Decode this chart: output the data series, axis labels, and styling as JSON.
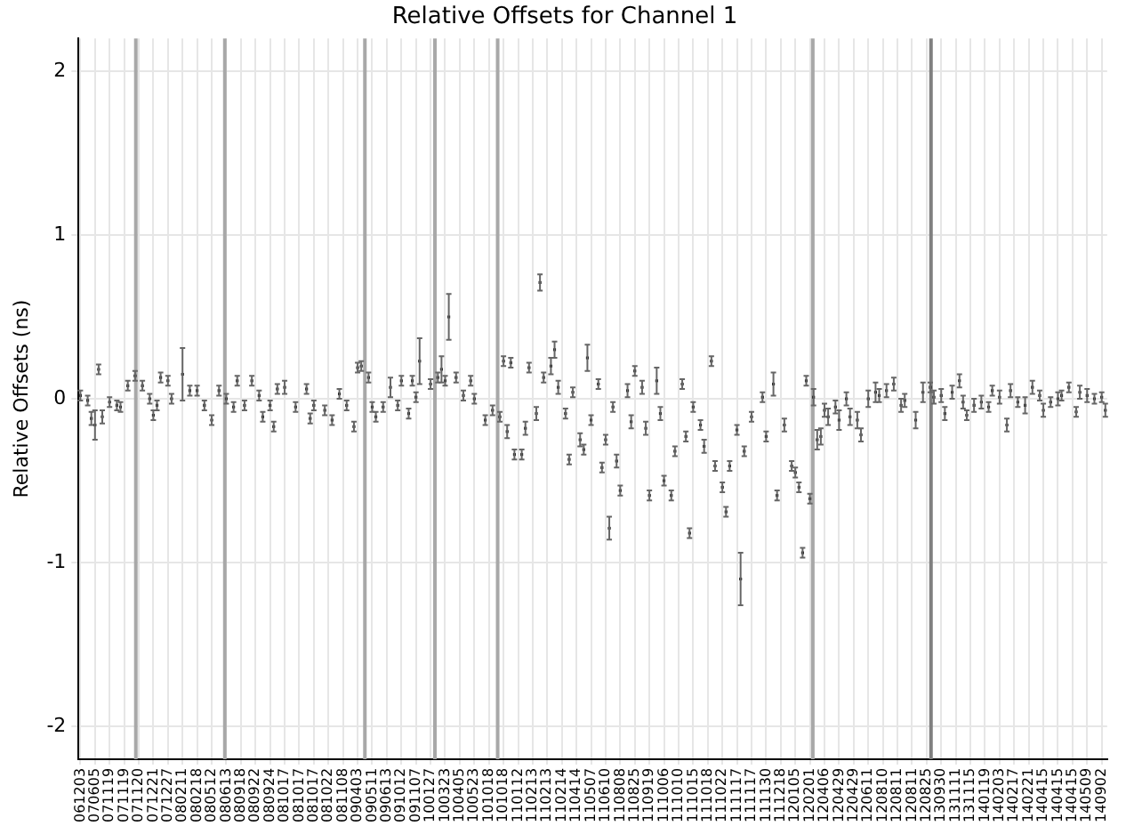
{
  "chart_data": {
    "type": "scatter",
    "title": "Relative Offsets for Channel 1",
    "ylabel": "Relative Offsets (ns)",
    "marker": "square",
    "grid": true,
    "legend": false,
    "color": "#000000",
    "ylim": [
      -2.2,
      2.2
    ],
    "yticks": [
      -2,
      -1,
      0,
      1,
      2
    ],
    "categories": [
      "061203",
      null,
      null,
      null,
      "070605",
      null,
      null,
      null,
      "071119",
      null,
      null,
      null,
      "071119",
      null,
      null,
      null,
      "071120",
      null,
      null,
      null,
      "071221",
      null,
      null,
      null,
      "071227",
      null,
      null,
      null,
      "080211",
      null,
      null,
      null,
      "080218",
      null,
      null,
      null,
      "080512",
      null,
      null,
      null,
      "080613",
      null,
      null,
      null,
      "080918",
      null,
      null,
      null,
      "080922",
      null,
      null,
      null,
      "080924",
      null,
      null,
      null,
      "081017",
      null,
      null,
      null,
      "081017",
      null,
      null,
      null,
      "081017",
      null,
      null,
      null,
      "081022",
      null,
      null,
      null,
      "081108",
      null,
      null,
      null,
      "090403",
      null,
      null,
      null,
      "090511",
      null,
      null,
      null,
      "090613",
      null,
      null,
      null,
      "091012",
      null,
      null,
      null,
      "091107",
      null,
      null,
      null,
      "100127",
      null,
      null,
      null,
      "100323",
      null,
      null,
      null,
      "100405",
      null,
      null,
      null,
      "100523",
      null,
      null,
      null,
      "101018",
      null,
      null,
      null,
      "101018",
      null,
      null,
      null,
      "110112",
      null,
      null,
      null,
      "110213",
      null,
      null,
      null,
      "110213",
      null,
      null,
      null,
      "110214",
      null,
      null,
      null,
      "110414",
      null,
      null,
      null,
      "110507",
      null,
      null,
      null,
      "110610",
      null,
      null,
      null,
      "110808",
      null,
      null,
      null,
      "110825",
      null,
      null,
      null,
      "110919",
      null,
      null,
      null,
      "111006",
      null,
      null,
      null,
      "111010",
      null,
      null,
      null,
      "111015",
      null,
      null,
      null,
      "111018",
      null,
      null,
      null,
      "111022",
      null,
      null,
      null,
      "111117",
      null,
      null,
      null,
      "111117",
      null,
      null,
      null,
      "111130",
      null,
      null,
      null,
      "111218",
      null,
      null,
      null,
      "120105",
      null,
      null,
      null,
      "120201",
      null,
      null,
      null,
      "120406",
      null,
      null,
      null,
      "120429",
      null,
      null,
      null,
      "120429",
      null,
      null,
      null,
      "120611",
      null,
      null,
      null,
      "120810",
      null,
      null,
      null,
      "120811",
      null,
      null,
      null,
      "120811",
      null,
      null,
      null,
      "120825",
      null,
      null,
      null,
      "130930",
      null,
      null,
      null,
      "131111",
      null,
      null,
      null,
      "131115",
      null,
      null,
      null,
      "140119",
      null,
      null,
      null,
      "140203",
      null,
      null,
      null,
      "140217",
      null,
      null,
      null,
      "140221",
      null,
      null,
      null,
      "140415",
      null,
      null,
      null,
      "140415",
      null,
      null,
      null,
      "140415",
      null,
      null,
      null,
      "140509",
      null,
      null,
      null,
      "140902",
      null
    ],
    "values": [
      0.02,
      null,
      -0.01,
      -0.12,
      -0.16,
      0.18,
      -0.11,
      null,
      -0.02,
      null,
      -0.04,
      -0.05,
      null,
      0.08,
      null,
      0.14,
      null,
      0.08,
      null,
      0.0,
      -0.1,
      -0.04,
      0.13,
      null,
      0.11,
      0.0,
      null,
      null,
      0.15,
      null,
      0.05,
      null,
      0.05,
      null,
      -0.04,
      null,
      -0.13,
      null,
      0.05,
      null,
      0.0,
      null,
      -0.05,
      0.11,
      null,
      -0.04,
      null,
      0.11,
      null,
      0.02,
      -0.11,
      null,
      -0.04,
      -0.17,
      0.06,
      null,
      0.07,
      null,
      null,
      -0.05,
      null,
      null,
      0.06,
      -0.12,
      -0.04,
      null,
      null,
      -0.07,
      null,
      -0.13,
      null,
      0.03,
      null,
      -0.04,
      null,
      -0.17,
      0.19,
      0.2,
      null,
      0.13,
      -0.05,
      -0.11,
      null,
      -0.05,
      null,
      0.07,
      null,
      -0.04,
      0.11,
      null,
      -0.09,
      0.11,
      0.01,
      0.23,
      null,
      null,
      0.09,
      null,
      0.13,
      0.18,
      0.11,
      0.5,
      null,
      0.13,
      null,
      0.02,
      null,
      0.11,
      0.0,
      null,
      null,
      -0.13,
      null,
      -0.07,
      null,
      -0.11,
      0.23,
      -0.2,
      0.22,
      -0.34,
      null,
      -0.34,
      -0.18,
      0.19,
      null,
      -0.09,
      0.71,
      0.13,
      null,
      0.2,
      0.3,
      0.07,
      null,
      -0.09,
      -0.37,
      0.04,
      null,
      -0.25,
      -0.31,
      0.25,
      -0.13,
      null,
      0.09,
      -0.42,
      -0.25,
      -0.79,
      -0.05,
      -0.38,
      -0.56,
      null,
      0.05,
      -0.14,
      0.17,
      null,
      0.07,
      -0.18,
      -0.59,
      null,
      0.11,
      -0.09,
      -0.5,
      null,
      -0.59,
      -0.32,
      null,
      0.09,
      -0.23,
      -0.82,
      -0.05,
      null,
      -0.16,
      -0.29,
      null,
      0.23,
      -0.41,
      null,
      -0.54,
      -0.69,
      -0.41,
      null,
      -0.19,
      -1.1,
      -0.32,
      null,
      -0.11,
      null,
      null,
      0.01,
      -0.23,
      null,
      0.09,
      -0.59,
      null,
      -0.16,
      null,
      -0.41,
      -0.45,
      -0.54,
      -0.94,
      0.11,
      -0.61,
      0.01,
      -0.25,
      -0.23,
      -0.07,
      -0.11,
      null,
      -0.05,
      -0.13,
      null,
      0.0,
      -0.11,
      null,
      -0.13,
      -0.22,
      null,
      0.0,
      null,
      0.04,
      0.02,
      null,
      0.05,
      null,
      0.09,
      null,
      -0.04,
      -0.01,
      null,
      null,
      -0.13,
      null,
      0.04,
      null,
      0.07,
      0.01,
      null,
      0.02,
      -0.09,
      null,
      0.04,
      null,
      0.11,
      -0.02,
      -0.1,
      null,
      -0.04,
      null,
      -0.02,
      null,
      -0.05,
      0.05,
      null,
      0.01,
      null,
      -0.16,
      0.05,
      null,
      -0.02,
      null,
      -0.04,
      null,
      0.07,
      null,
      0.02,
      -0.07,
      null,
      -0.02,
      null,
      0.0,
      0.02,
      null,
      0.07,
      null,
      -0.08,
      0.04,
      null,
      0.02,
      null,
      0.0,
      null,
      0.01,
      -0.07
    ],
    "errors": [
      0.03,
      null,
      0.03,
      0.04,
      0.09,
      0.03,
      0.04,
      null,
      0.03,
      null,
      0.03,
      0.03,
      null,
      0.03,
      null,
      0.03,
      null,
      0.03,
      null,
      0.03,
      0.03,
      0.03,
      0.03,
      null,
      0.03,
      0.03,
      null,
      null,
      0.16,
      null,
      0.03,
      null,
      0.03,
      null,
      0.03,
      null,
      0.03,
      null,
      0.03,
      null,
      0.03,
      null,
      0.03,
      0.03,
      null,
      0.03,
      null,
      0.03,
      null,
      0.03,
      0.03,
      null,
      0.03,
      0.03,
      0.03,
      null,
      0.04,
      null,
      null,
      0.03,
      null,
      null,
      0.03,
      0.03,
      0.03,
      null,
      null,
      0.03,
      null,
      0.03,
      null,
      0.03,
      null,
      0.03,
      null,
      0.03,
      0.03,
      0.03,
      null,
      0.03,
      0.03,
      0.03,
      null,
      0.03,
      null,
      0.06,
      null,
      0.03,
      0.03,
      null,
      0.03,
      0.03,
      0.03,
      0.14,
      null,
      null,
      0.03,
      null,
      0.03,
      0.08,
      0.03,
      0.14,
      null,
      0.03,
      null,
      0.03,
      null,
      0.03,
      0.03,
      null,
      null,
      0.03,
      null,
      0.03,
      null,
      0.03,
      0.03,
      0.04,
      0.03,
      0.03,
      null,
      0.03,
      0.04,
      0.03,
      null,
      0.04,
      0.05,
      0.03,
      null,
      0.05,
      0.05,
      0.04,
      null,
      0.03,
      0.03,
      0.03,
      null,
      0.04,
      0.03,
      0.08,
      0.03,
      null,
      0.03,
      0.03,
      0.03,
      0.07,
      0.03,
      0.04,
      0.03,
      null,
      0.04,
      0.04,
      0.03,
      null,
      0.04,
      0.04,
      0.03,
      null,
      0.08,
      0.04,
      0.03,
      null,
      0.03,
      0.03,
      null,
      0.03,
      0.03,
      0.03,
      0.03,
      null,
      0.03,
      0.04,
      null,
      0.03,
      0.03,
      null,
      0.03,
      0.03,
      0.03,
      null,
      0.03,
      0.16,
      0.03,
      null,
      0.03,
      null,
      null,
      0.03,
      0.03,
      null,
      0.07,
      0.03,
      null,
      0.04,
      null,
      0.03,
      0.03,
      0.03,
      0.03,
      0.03,
      0.03,
      0.05,
      0.06,
      0.05,
      0.04,
      0.05,
      null,
      0.04,
      0.06,
      null,
      0.04,
      0.05,
      null,
      0.05,
      0.04,
      null,
      0.05,
      null,
      0.06,
      0.04,
      null,
      0.04,
      null,
      0.04,
      null,
      0.04,
      0.04,
      null,
      null,
      0.05,
      null,
      0.06,
      null,
      0.03,
      0.04,
      null,
      0.04,
      0.04,
      null,
      0.04,
      null,
      0.04,
      0.04,
      0.03,
      null,
      0.04,
      null,
      0.04,
      null,
      0.03,
      0.03,
      null,
      0.04,
      null,
      0.04,
      0.04,
      null,
      0.03,
      null,
      0.05,
      null,
      0.04,
      null,
      0.03,
      0.04,
      null,
      0.03,
      null,
      0.04,
      0.03,
      null,
      0.03,
      null,
      0.03,
      0.04,
      null,
      0.04,
      null,
      0.03,
      null,
      0.03,
      0.04
    ]
  }
}
